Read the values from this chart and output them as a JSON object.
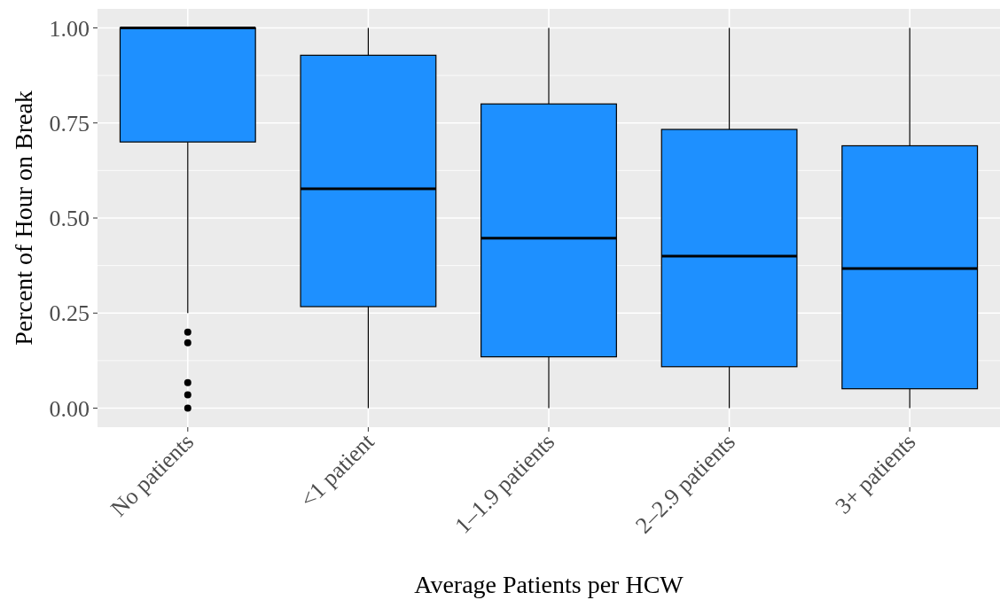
{
  "chart_data": {
    "type": "box",
    "xlabel": "Average Patients per HCW",
    "ylabel": "Percent of Hour on Break",
    "categories": [
      "No patients",
      "<1 patient",
      "1–1.9 patients",
      "2–2.9 patients",
      "3+ patients"
    ],
    "color": "#1e90ff",
    "boxes": [
      {
        "low": 0.25,
        "q1": 0.7,
        "median": 1.0,
        "q3": 1.0,
        "high": 1.0,
        "outliers": [
          0.2,
          0.172,
          0.067,
          0.035,
          0
        ]
      },
      {
        "low": 0,
        "q1": 0.267,
        "median": 0.577,
        "q3": 0.928,
        "high": 1.0
      },
      {
        "low": 0,
        "q1": 0.135,
        "median": 0.447,
        "q3": 0.8,
        "high": 1.0
      },
      {
        "low": 0,
        "q1": 0.109,
        "median": 0.4,
        "q3": 0.733,
        "high": 1.0
      },
      {
        "low": 0,
        "q1": 0.051,
        "median": 0.367,
        "q3": 0.69,
        "high": 1.0
      }
    ],
    "ylim": [
      -0.05,
      1.05
    ],
    "yticks": [
      {
        "value": 0,
        "label": "0.00"
      },
      {
        "value": 0.25,
        "label": "0.25"
      },
      {
        "value": 0.5,
        "label": "0.50"
      },
      {
        "value": 0.75,
        "label": "0.75"
      },
      {
        "value": 1,
        "label": "1.00"
      }
    ],
    "grid": true
  }
}
